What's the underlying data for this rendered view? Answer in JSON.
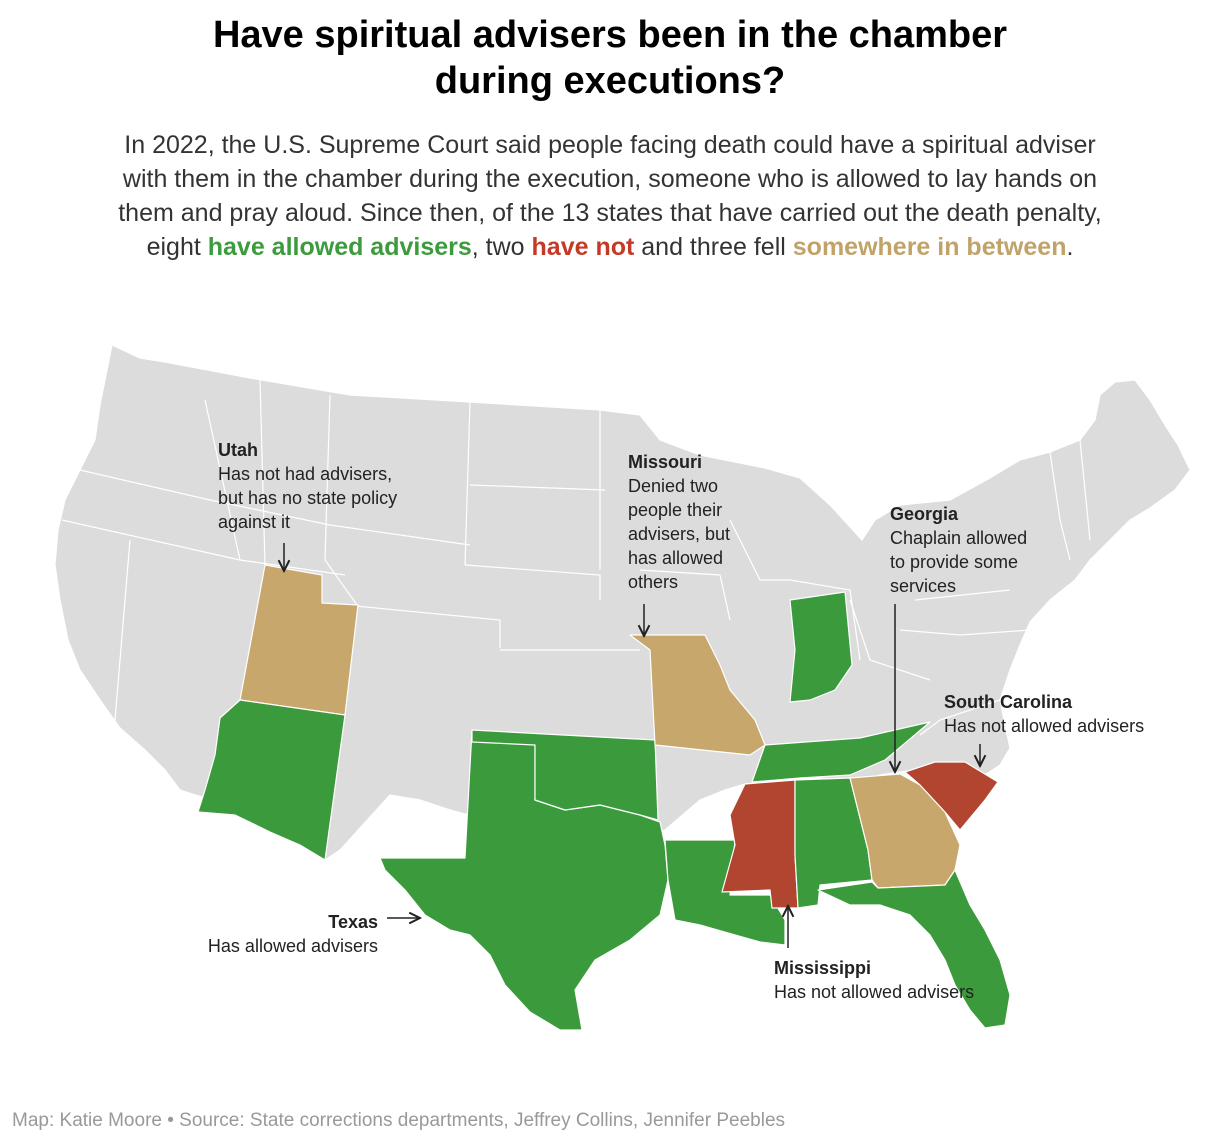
{
  "title_lines": [
    "Have spiritual advisers been in the chamber",
    "during executions?"
  ],
  "dek": {
    "line1": "In 2022, the U.S. Supreme Court said people facing death could have a spiritual adviser",
    "line2": "with them in the chamber during the execution, someone who is allowed to lay hands on",
    "line3": "them and pray aloud. Since then, of the 13 states that have carried out the death penalty,",
    "line4_a": "eight ",
    "allowed": "have allowed advisers",
    "line4_b": ", two ",
    "not_allowed": "have not",
    "line4_c": " and three fell ",
    "between": "somewhere in between",
    "line4_d": "."
  },
  "colors": {
    "allowed": "#3b9a3b",
    "not_allowed": "#b1452f",
    "between": "#c8a76c",
    "no_executions": "#dcdcdc",
    "allowed_text": "#3c9b3c",
    "not_allowed_text": "#c53a26",
    "between_text": "#c1a36a"
  },
  "states_by_category": {
    "allowed": [
      "Arizona",
      "Texas",
      "Oklahoma",
      "Louisiana",
      "Tennessee",
      "Alabama",
      "Florida",
      "Indiana"
    ],
    "not_allowed": [
      "Mississippi",
      "South Carolina"
    ],
    "between": [
      "Utah",
      "Missouri",
      "Georgia"
    ]
  },
  "annotations": {
    "utah": {
      "name": "Utah",
      "lines": [
        "Has not had advisers,",
        "but has no state policy",
        "against it"
      ]
    },
    "missouri": {
      "name": "Missouri",
      "lines": [
        "Denied two",
        "people their",
        "advisers, but",
        "has allowed",
        "others"
      ]
    },
    "georgia": {
      "name": "Georgia",
      "lines": [
        "Chaplain allowed",
        "to provide some",
        "services"
      ]
    },
    "south_carolina": {
      "name": "South Carolina",
      "lines": [
        "Has not allowed advisers"
      ]
    },
    "texas": {
      "name": "Texas",
      "lines": [
        "Has allowed advisers"
      ]
    },
    "mississippi": {
      "name": "Mississippi",
      "lines": [
        "Has not allowed advisers"
      ]
    }
  },
  "footer": "Map: Katie Moore  • Source: State corrections departments, Jeffrey Collins, Jennifer Peebles"
}
